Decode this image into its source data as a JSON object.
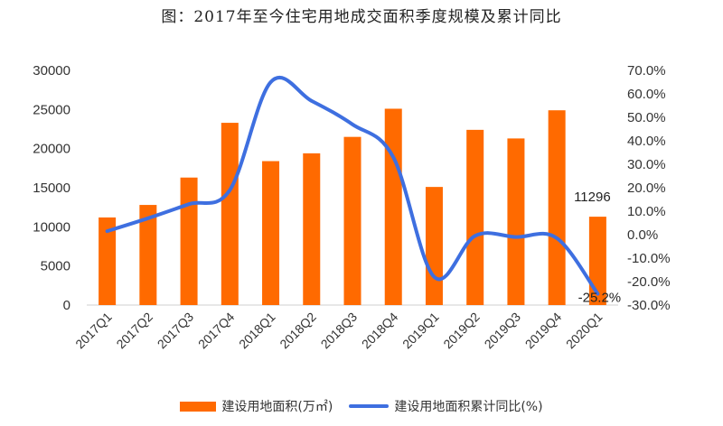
{
  "chart_data": {
    "type": "bar",
    "title": "图：2017年至今住宅用地成交面积季度规模及累计同比",
    "categories": [
      "2017Q1",
      "2017Q2",
      "2017Q3",
      "2017Q4",
      "2018Q1",
      "2018Q2",
      "2018Q3",
      "2018Q4",
      "2019Q1",
      "2019Q2",
      "2019Q3",
      "2019Q4",
      "2020Q1"
    ],
    "series": [
      {
        "name": "建设用地面积(万㎡)",
        "type": "bar",
        "axis": "left",
        "color": "#ff6a00",
        "values": [
          11200,
          12800,
          16300,
          23300,
          18400,
          19400,
          21500,
          25100,
          15100,
          22400,
          21300,
          24900,
          11296
        ]
      },
      {
        "name": "建设用地面积累计同比(%)",
        "type": "line",
        "axis": "right",
        "color": "#3e6fe0",
        "values": [
          1.5,
          7.0,
          13.0,
          19.0,
          65.0,
          57.0,
          47.0,
          33.0,
          -18.0,
          -0.5,
          -1.0,
          -1.5,
          -25.2
        ]
      }
    ],
    "y_left": {
      "range": [
        0,
        30000
      ],
      "ticks": [
        "0",
        "5000",
        "10000",
        "15000",
        "20000",
        "25000",
        "30000"
      ]
    },
    "y_right": {
      "range": [
        -30,
        70
      ],
      "ticks": [
        "70.0%",
        "60.0%",
        "50.0%",
        "40.0%",
        "30.0%",
        "20.0%",
        "10.0%",
        "0.0%",
        "-10.0%",
        "-20.0%",
        "-30.0%"
      ]
    },
    "annotations": [
      {
        "label": "11296",
        "series": 0,
        "index": 12
      },
      {
        "label": "-25.2%",
        "series": 1,
        "index": 12
      }
    ],
    "grid": false,
    "legend_position": "bottom"
  }
}
